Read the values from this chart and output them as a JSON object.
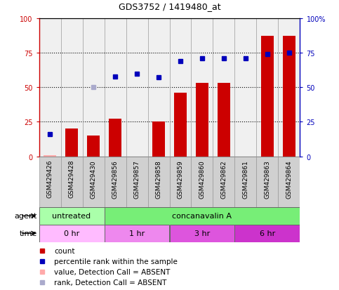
{
  "title": "GDS3752 / 1419480_at",
  "samples": [
    "GSM429426",
    "GSM429428",
    "GSM429430",
    "GSM429856",
    "GSM429857",
    "GSM429858",
    "GSM429859",
    "GSM429860",
    "GSM429862",
    "GSM429861",
    "GSM429863",
    "GSM429864"
  ],
  "count_values": [
    1,
    20,
    15,
    27,
    0,
    25,
    46,
    53,
    53,
    0,
    87,
    87
  ],
  "count_absent": [
    true,
    false,
    false,
    false,
    true,
    false,
    false,
    false,
    false,
    true,
    false,
    false
  ],
  "rank_values": [
    16,
    0,
    50,
    58,
    60,
    57,
    69,
    71,
    71,
    71,
    74,
    75
  ],
  "rank_absent": [
    false,
    true,
    true,
    false,
    false,
    false,
    false,
    false,
    false,
    false,
    false,
    false
  ],
  "bar_color_present": "#cc0000",
  "bar_color_absent": "#ffaaaa",
  "rank_color_present": "#0000bb",
  "rank_color_absent": "#aaaacc",
  "agent_defs": [
    {
      "label": "untreated",
      "start": 0,
      "end": 3,
      "color": "#aaffaa"
    },
    {
      "label": "concanavalin A",
      "start": 3,
      "end": 12,
      "color": "#77ee77"
    }
  ],
  "time_defs": [
    {
      "label": "0 hr",
      "start": 0,
      "end": 3,
      "color": "#ffbbff"
    },
    {
      "label": "1 hr",
      "start": 3,
      "end": 6,
      "color": "#ee88ee"
    },
    {
      "label": "3 hr",
      "start": 6,
      "end": 9,
      "color": "#dd55dd"
    },
    {
      "label": "6 hr",
      "start": 9,
      "end": 12,
      "color": "#cc33cc"
    }
  ],
  "legend_items": [
    {
      "color": "#cc0000",
      "label": "count"
    },
    {
      "color": "#0000bb",
      "label": "percentile rank within the sample"
    },
    {
      "color": "#ffaaaa",
      "label": "value, Detection Call = ABSENT"
    },
    {
      "color": "#aaaacc",
      "label": "rank, Detection Call = ABSENT"
    }
  ],
  "plot_bg": "#ffffff",
  "fig_bg": "#ffffff"
}
